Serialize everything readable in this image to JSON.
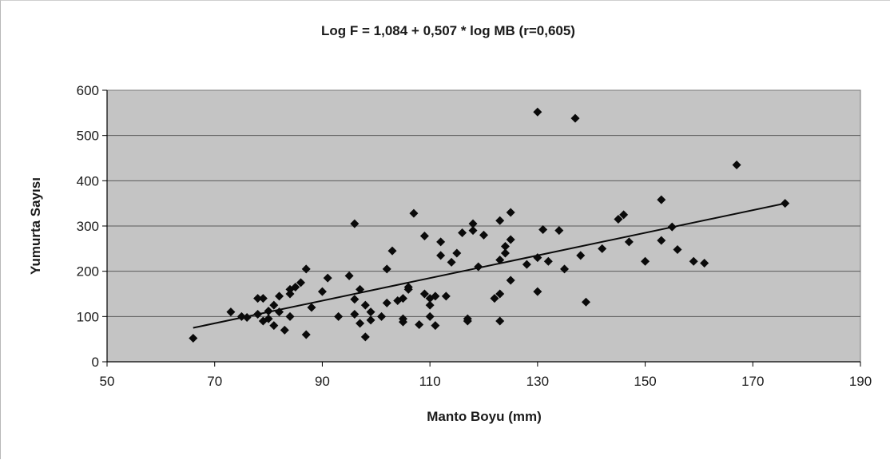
{
  "chart_data": {
    "type": "scatter",
    "title": "Log F = 1,084 + 0,507 * log MB (r=0,605)",
    "xlabel": "Manto Boyu (mm)",
    "ylabel": "Yumurta Sayısı",
    "xlim": [
      50,
      190
    ],
    "ylim": [
      0,
      600
    ],
    "x_ticks": [
      "50",
      "70",
      "90",
      "110",
      "130",
      "150",
      "170",
      "190"
    ],
    "y_ticks": [
      "0",
      "100",
      "200",
      "300",
      "400",
      "500",
      "600"
    ],
    "grid": "horizontal",
    "legend": "none",
    "colors": {
      "plot_background": "#c4c4c4",
      "marker": "#0a0a0a",
      "trendline": "#0a0a0a",
      "gridline": "#5a5a5a"
    },
    "trendline": {
      "x": [
        66,
        176
      ],
      "y": [
        75,
        350
      ]
    },
    "points": [
      [
        66,
        52
      ],
      [
        73,
        110
      ],
      [
        75,
        100
      ],
      [
        76,
        98
      ],
      [
        78,
        105
      ],
      [
        78,
        140
      ],
      [
        79,
        90
      ],
      [
        79,
        140
      ],
      [
        80,
        112
      ],
      [
        80,
        95
      ],
      [
        81,
        80
      ],
      [
        81,
        125
      ],
      [
        82,
        110
      ],
      [
        82,
        145
      ],
      [
        83,
        70
      ],
      [
        84,
        100
      ],
      [
        84,
        150
      ],
      [
        84,
        160
      ],
      [
        85,
        165
      ],
      [
        86,
        175
      ],
      [
        87,
        60
      ],
      [
        87,
        205
      ],
      [
        88,
        120
      ],
      [
        90,
        155
      ],
      [
        91,
        185
      ],
      [
        93,
        100
      ],
      [
        95,
        190
      ],
      [
        96,
        138
      ],
      [
        96,
        105
      ],
      [
        96,
        305
      ],
      [
        97,
        160
      ],
      [
        97,
        85
      ],
      [
        98,
        55
      ],
      [
        98,
        125
      ],
      [
        99,
        110
      ],
      [
        99,
        92
      ],
      [
        101,
        100
      ],
      [
        102,
        130
      ],
      [
        102,
        205
      ],
      [
        103,
        245
      ],
      [
        104,
        135
      ],
      [
        105,
        140
      ],
      [
        105,
        95
      ],
      [
        105,
        88
      ],
      [
        106,
        165
      ],
      [
        106,
        160
      ],
      [
        107,
        328
      ],
      [
        108,
        82
      ],
      [
        109,
        150
      ],
      [
        109,
        278
      ],
      [
        110,
        125
      ],
      [
        110,
        140
      ],
      [
        110,
        100
      ],
      [
        111,
        80
      ],
      [
        111,
        145
      ],
      [
        112,
        265
      ],
      [
        112,
        235
      ],
      [
        113,
        145
      ],
      [
        114,
        220
      ],
      [
        115,
        240
      ],
      [
        116,
        285
      ],
      [
        117,
        90
      ],
      [
        117,
        95
      ],
      [
        118,
        290
      ],
      [
        118,
        305
      ],
      [
        119,
        210
      ],
      [
        120,
        280
      ],
      [
        122,
        140
      ],
      [
        123,
        150
      ],
      [
        123,
        90
      ],
      [
        123,
        225
      ],
      [
        123,
        312
      ],
      [
        124,
        240
      ],
      [
        124,
        255
      ],
      [
        125,
        270
      ],
      [
        125,
        180
      ],
      [
        125,
        330
      ],
      [
        128,
        215
      ],
      [
        130,
        155
      ],
      [
        130,
        230
      ],
      [
        130,
        552
      ],
      [
        131,
        292
      ],
      [
        132,
        222
      ],
      [
        134,
        290
      ],
      [
        135,
        205
      ],
      [
        137,
        538
      ],
      [
        138,
        235
      ],
      [
        139,
        132
      ],
      [
        142,
        250
      ],
      [
        145,
        315
      ],
      [
        146,
        325
      ],
      [
        147,
        265
      ],
      [
        150,
        222
      ],
      [
        153,
        268
      ],
      [
        153,
        358
      ],
      [
        155,
        298
      ],
      [
        156,
        248
      ],
      [
        159,
        222
      ],
      [
        161,
        218
      ],
      [
        167,
        435
      ],
      [
        176,
        350
      ]
    ]
  }
}
